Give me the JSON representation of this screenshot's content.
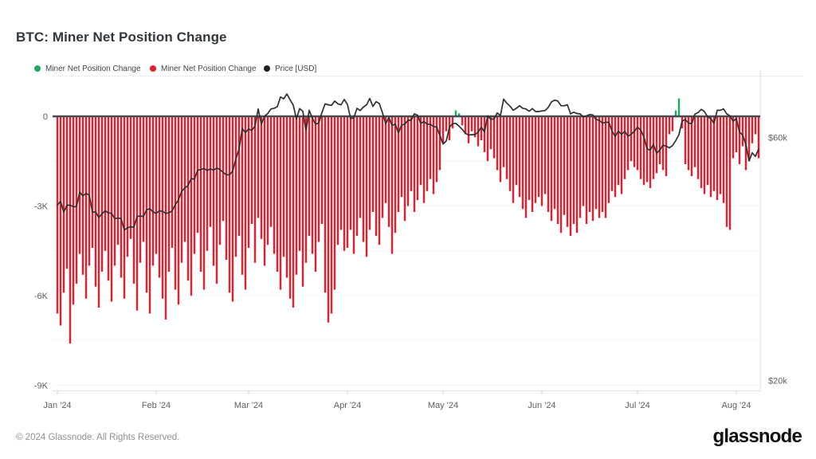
{
  "header": {
    "title": "BTC: Miner Net Position Change"
  },
  "footer": {
    "copyright": "© 2024 Glassnode. All Rights Reserved.",
    "logo_text": "glassnode"
  },
  "chart_data": {
    "type": "combo_bar_line",
    "title": "BTC: Miner Net Position Change",
    "legend": [
      {
        "label": "Miner Net Position Change",
        "color": "#19aa60",
        "marker": "dot"
      },
      {
        "label": "Miner Net Position Change",
        "color": "#e41e2d",
        "marker": "dot"
      },
      {
        "label": "Price [USD]",
        "color": "#1d1f21",
        "marker": "dot"
      }
    ],
    "colors": {
      "positive": "#19aa60",
      "negative": "#e41e2d",
      "price": "#2d3033",
      "zero_line": "#474b4f",
      "grid": "#f4f4f4",
      "axis_line": "#e3e3e3",
      "tick_mark": "#cfcfcf",
      "right_border": "#dcdcdc"
    },
    "x_axis": {
      "ticks": [
        {
          "label": "Jan '24",
          "day": 0
        },
        {
          "label": "Feb '24",
          "day": 31
        },
        {
          "label": "Mar '24",
          "day": 60
        },
        {
          "label": "Apr '24",
          "day": 91
        },
        {
          "label": "May '24",
          "day": 121
        },
        {
          "label": "Jun '24",
          "day": 152
        },
        {
          "label": "Jul '24",
          "day": 182
        },
        {
          "label": "Aug '24",
          "day": 213
        }
      ]
    },
    "y_left": {
      "unit": "K BTC",
      "ticks": [
        {
          "label": "0",
          "value": 0
        },
        {
          "label": "-3K",
          "value": -3
        },
        {
          "label": "-6K",
          "value": -6
        },
        {
          "label": "-9K",
          "value": -9
        }
      ],
      "grid_values": [
        -1.5,
        -3,
        -4.5,
        -6,
        -7.5,
        -9
      ],
      "range": [
        -9,
        1
      ]
    },
    "y_right": {
      "unit": "USD",
      "scale": "log",
      "ticks": [
        {
          "label": "$60k",
          "value": 60
        },
        {
          "label": "$20k",
          "value": 20
        }
      ]
    },
    "series": [
      {
        "id": "miner",
        "name": "Miner Net Position Change",
        "type": "bar",
        "unit": "K BTC per day",
        "values": [
          -6.6,
          -7.0,
          -5.9,
          -5.1,
          -7.6,
          -6.3,
          -5.6,
          -4.6,
          -5.3,
          -6.1,
          -5.0,
          -4.4,
          -5.7,
          -6.4,
          -5.2,
          -4.5,
          -5.5,
          -6.2,
          -5.0,
          -4.3,
          -5.4,
          -6.1,
          -4.7,
          -4.1,
          -5.6,
          -6.5,
          -4.9,
          -4.2,
          -5.9,
          -6.6,
          -5.0,
          -4.6,
          -5.4,
          -6.1,
          -6.8,
          -5.2,
          -4.4,
          -5.8,
          -6.3,
          -4.9,
          -4.2,
          -5.5,
          -6.0,
          -4.6,
          -3.9,
          -5.2,
          -5.8,
          -4.5,
          -3.7,
          -5.0,
          -5.6,
          -4.3,
          -3.5,
          -4.8,
          -5.9,
          -6.2,
          -4.7,
          -4.0,
          -5.3,
          -5.8,
          -4.4,
          -3.6,
          -4.9,
          -3.4,
          -4.1,
          -5.0,
          -4.3,
          -3.7,
          -4.6,
          -5.2,
          -5.8,
          -4.7,
          -5.4,
          -6.1,
          -6.4,
          -5.3,
          -4.5,
          -5.7,
          -4.9,
          -4.0,
          -4.6,
          -5.2,
          -4.2,
          -3.6,
          -5.9,
          -6.9,
          -6.6,
          -5.8,
          -4.3,
          -3.8,
          -4.5,
          -4.4,
          -3.8,
          -4.6,
          -4.0,
          -3.4,
          -4.2,
          -4.7,
          -3.8,
          -3.2,
          -4.0,
          -4.3,
          -3.4,
          -2.9,
          -3.7,
          -4.6,
          -3.9,
          -3.2,
          -2.7,
          -3.5,
          -3.0,
          -2.5,
          -3.2,
          -2.8,
          -2.3,
          -2.9,
          -2.5,
          -2.1,
          -2.6,
          -2.2,
          -1.8,
          -0.9,
          -0.5,
          -0.8,
          -0.4,
          0.2,
          0.1,
          -0.3,
          -0.6,
          -0.9,
          -0.5,
          -0.7,
          -1.0,
          -0.8,
          -1.2,
          -1.5,
          -1.1,
          -1.4,
          -1.8,
          -2.2,
          -1.7,
          -2.1,
          -2.5,
          -2.9,
          -2.3,
          -2.7,
          -3.1,
          -3.4,
          -2.8,
          -3.2,
          -2.9,
          -2.7,
          -3.0,
          -2.6,
          -3.2,
          -3.5,
          -3.1,
          -3.6,
          -3.9,
          -3.3,
          -3.7,
          -4.0,
          -3.6,
          -3.9,
          -3.4,
          -3.0,
          -3.6,
          -3.2,
          -3.5,
          -3.1,
          -3.4,
          -3.2,
          -3.4,
          -2.9,
          -2.5,
          -2.7,
          -2.3,
          -2.6,
          -2.1,
          -1.8,
          -1.5,
          -1.7,
          -1.8,
          -2.1,
          -2.3,
          -2.2,
          -2.4,
          -2.1,
          -1.9,
          -1.6,
          -1.8,
          -2.0,
          -0.6,
          -0.5,
          0.2,
          0.6,
          -0.4,
          -1.6,
          -1.8,
          -2.0,
          -1.7,
          -2.1,
          -2.4,
          -2.6,
          -2.3,
          -2.7,
          -2.5,
          -2.8,
          -2.6,
          -2.9,
          -3.7,
          -3.8,
          -1.4,
          -1.2,
          -1.6,
          -1.0,
          -1.8,
          -1.5,
          -0.9,
          -0.6,
          -1.4
        ]
      },
      {
        "id": "price",
        "name": "Price [USD]",
        "type": "line",
        "unit": "thousand USD",
        "values": [
          44.2,
          45.0,
          42.8,
          44.2,
          44.2,
          43.9,
          43.9,
          46.9,
          46.1,
          46.6,
          46.3,
          42.8,
          42.9,
          41.8,
          42.5,
          43.1,
          42.7,
          42.6,
          41.6,
          41.7,
          41.6,
          39.5,
          39.9,
          40.1,
          40.0,
          42.0,
          42.1,
          42.0,
          43.3,
          43.5,
          42.9,
          42.6,
          43.1,
          43.0,
          42.6,
          42.7,
          43.1,
          44.3,
          45.3,
          47.1,
          47.8,
          48.3,
          49.9,
          49.7,
          51.8,
          51.9,
          52.2,
          51.7,
          52.1,
          51.8,
          52.3,
          51.9,
          51.3,
          50.7,
          50.7,
          51.6,
          54.5,
          57.0,
          62.5,
          61.4,
          62.4,
          62.0,
          63.2,
          68.3,
          63.8,
          66.1,
          66.9,
          68.3,
          68.5,
          69.0,
          72.1,
          71.5,
          73.1,
          71.2,
          69.5,
          65.3,
          68.4,
          67.6,
          61.9,
          67.9,
          65.5,
          63.8,
          64.1,
          67.2,
          69.9,
          69.6,
          69.4,
          70.8,
          69.9,
          69.6,
          71.3,
          69.7,
          65.4,
          65.6,
          68.5,
          67.8,
          68.9,
          69.6,
          71.6,
          69.1,
          70.6,
          70.0,
          67.1,
          63.9,
          65.7,
          63.4,
          63.8,
          61.3,
          63.5,
          63.8,
          64.9,
          64.9,
          66.8,
          66.4,
          64.0,
          64.5,
          63.8,
          63.7,
          63.1,
          62.9,
          60.6,
          58.3,
          59.1,
          62.9,
          63.9,
          64.0,
          63.2,
          62.3,
          61.2,
          60.7,
          60.8,
          60.8,
          61.5,
          62.9,
          61.6,
          66.2,
          65.2,
          65.3,
          67.1,
          66.3,
          71.4,
          70.1,
          69.2,
          67.9,
          68.5,
          69.3,
          68.5,
          68.3,
          67.6,
          68.4,
          67.5,
          67.5,
          67.7,
          67.8,
          68.8,
          70.5,
          71.1,
          70.8,
          69.3,
          69.3,
          69.6,
          66.8,
          67.3,
          66.9,
          66.8,
          65.9,
          66.2,
          66.6,
          66.5,
          65.1,
          64.9,
          64.1,
          64.3,
          64.3,
          61.8,
          60.3,
          61.8,
          60.9,
          61.7,
          60.4,
          60.9,
          61.7,
          62.9,
          62.1,
          60.2,
          57.0,
          56.7,
          58.2,
          55.9,
          56.7,
          58.0,
          57.7,
          57.3,
          57.9,
          59.2,
          60.8,
          64.7,
          65.1,
          64.1,
          63.9,
          66.7,
          67.2,
          68.2,
          67.5,
          65.9,
          65.4,
          64.0,
          67.9,
          67.9,
          68.3,
          66.8,
          66.2,
          64.6,
          65.4,
          61.5,
          60.7,
          58.2,
          54.0,
          56.0,
          55.1,
          57.0
        ]
      }
    ]
  }
}
